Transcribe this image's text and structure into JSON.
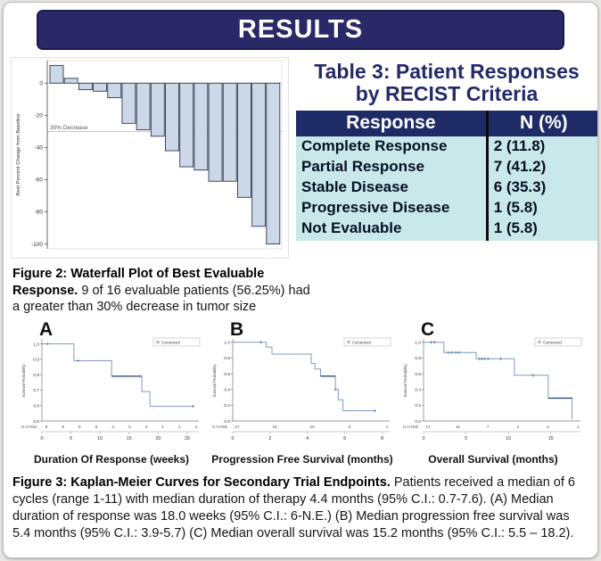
{
  "page": {
    "title": "RESULTS"
  },
  "colors": {
    "header_bg": "#2a2968",
    "table_header_bg": "#1f2b66",
    "table_row_bg": "#c9e8ea",
    "title_navy": "#232a68",
    "bar_fill": "#ccd7e8",
    "bar_stroke": "#2f3a55",
    "km_line": "#7d9cc4",
    "km_dark": "#2f5478",
    "km_censor": "#5b82ad"
  },
  "table3": {
    "title_line1": "Table 3: Patient Responses",
    "title_line2": "by RECIST Criteria",
    "columns": [
      "Response",
      "N (%)"
    ],
    "rows": [
      [
        "Complete Response",
        "2 (11.8)"
      ],
      [
        "Partial Response",
        "7 (41.2)"
      ],
      [
        "Stable Disease",
        "6 (35.3)"
      ],
      [
        "Progressive Disease",
        "1 (5.8)"
      ],
      [
        "Not Evaluable",
        "1 (5.8)"
      ]
    ]
  },
  "figure2": {
    "caption_bold": "Figure 2: Waterfall Plot of Best Evaluable Response.",
    "caption_text": " 9 of 16 evaluable patients (56.25%) had a greater than 30% decrease in tumor size"
  },
  "figure3": {
    "caption_bold": "Figure 3: Kaplan-Meier Curves for Secondary Trial Endpoints.",
    "caption_text": " Patients received a median of 6 cycles (range 1-11) with median duration of therapy 4.4 months (95% C.I.: 0.7-7.6). (A) Median duration of response was 18.0 weeks (95% C.I.: 6-N.E.)  (B) Median progression free survival was 5.4 months (95% C.I.: 3.9-5.7) (C) Median overall survival was 15.2 months (95% C.I.: 5.5 – 18.2)."
  },
  "chart_data": [
    {
      "type": "bar",
      "subtype": "waterfall",
      "title": "Waterfall Plot of Best Evaluable Response",
      "ylabel": "Best Percent Change from Baseline",
      "values": [
        11,
        3,
        -4,
        -5,
        -9,
        -25,
        -29,
        -33,
        -42,
        -52,
        -54,
        -61,
        -61,
        -71,
        -89,
        -100
      ],
      "yticks": [
        0,
        -20,
        -40,
        -60,
        -80,
        -100
      ],
      "ylim": [
        -103,
        14
      ],
      "ref_line": {
        "y": -30,
        "label": "30% Decrease"
      },
      "grid": false
    },
    {
      "type": "line",
      "subtype": "kaplan-meier",
      "panel_label": "A",
      "xlabel": "Duration Of Response (weeks)",
      "ylabel": "Survival Probability",
      "legend": "Censored",
      "legend_position": "top-right",
      "xticks": [
        0,
        5,
        10,
        15,
        20,
        25
      ],
      "xmax": 27,
      "yticks": [
        1.0,
        0.9,
        0.8,
        0.7,
        0.6,
        0.5
      ],
      "ylim": [
        0.5,
        1.02
      ],
      "steps": [
        [
          0,
          1.0
        ],
        [
          5.5,
          1.0
        ],
        [
          5.5,
          0.89
        ],
        [
          12,
          0.89
        ],
        [
          12,
          0.79
        ],
        [
          17.2,
          0.79
        ],
        [
          17.2,
          0.69
        ],
        [
          18.6,
          0.69
        ],
        [
          18.6,
          0.595
        ],
        [
          26,
          0.595
        ]
      ],
      "censors": [
        [
          1,
          1.0
        ],
        [
          6.2,
          0.89
        ],
        [
          16.8,
          0.79
        ],
        [
          26,
          0.595
        ]
      ],
      "dark_segments": [
        [
          12,
          17.2,
          0.79
        ]
      ],
      "at_risk_label": "N At Risk",
      "at_risk": [
        9,
        8,
        8,
        5,
        4,
        3,
        2,
        1,
        1,
        1
      ]
    },
    {
      "type": "line",
      "subtype": "kaplan-meier",
      "panel_label": "B",
      "xlabel": "Progression Free Survival (months)",
      "ylabel": "Survival Probability",
      "legend": "Censored",
      "legend_position": "top-right",
      "xticks": [
        0,
        2,
        4,
        6,
        8
      ],
      "xmax": 8.4,
      "yticks": [
        1.0,
        0.8,
        0.6,
        0.4,
        0.2,
        0.0
      ],
      "ylim": [
        0.0,
        1.02
      ],
      "steps": [
        [
          0,
          1.0
        ],
        [
          1.8,
          1.0
        ],
        [
          1.8,
          0.94
        ],
        [
          2.1,
          0.94
        ],
        [
          2.1,
          0.85
        ],
        [
          4.2,
          0.85
        ],
        [
          4.2,
          0.73
        ],
        [
          4.4,
          0.73
        ],
        [
          4.4,
          0.66
        ],
        [
          4.7,
          0.66
        ],
        [
          4.7,
          0.57
        ],
        [
          5.5,
          0.57
        ],
        [
          5.5,
          0.4
        ],
        [
          5.65,
          0.4
        ],
        [
          5.65,
          0.27
        ],
        [
          5.9,
          0.27
        ],
        [
          5.9,
          0.13
        ],
        [
          7.6,
          0.13
        ]
      ],
      "censors": [
        [
          1.5,
          1.0
        ],
        [
          5.4,
          0.57
        ],
        [
          5.5,
          0.4
        ],
        [
          7.6,
          0.13
        ]
      ],
      "dark_segments": [
        [
          4.7,
          5.5,
          0.57
        ]
      ],
      "at_risk_label": "N At Risk",
      "at_risk": [
        17,
        15,
        10,
        3,
        1
      ]
    },
    {
      "type": "line",
      "subtype": "kaplan-meier",
      "panel_label": "C",
      "xlabel": "Overall Survival (months)",
      "ylabel": "Survival Probability",
      "legend": "Censored",
      "legend_position": "top-right",
      "xticks": [
        0,
        5,
        10,
        15
      ],
      "xmax": 18.5,
      "yticks": [
        1.0,
        0.8,
        0.6,
        0.4,
        0.2,
        0.0
      ],
      "ylim": [
        0.0,
        1.02
      ],
      "steps": [
        [
          0,
          1.0
        ],
        [
          2.4,
          1.0
        ],
        [
          2.4,
          0.87
        ],
        [
          6.2,
          0.87
        ],
        [
          6.2,
          0.79
        ],
        [
          10.7,
          0.79
        ],
        [
          10.7,
          0.58
        ],
        [
          14.7,
          0.58
        ],
        [
          14.7,
          0.29
        ],
        [
          17.5,
          0.29
        ],
        [
          17.5,
          0.02
        ]
      ],
      "censors": [
        [
          0.9,
          1.0
        ],
        [
          1.3,
          1.0
        ],
        [
          2.9,
          0.87
        ],
        [
          3.3,
          0.87
        ],
        [
          3.8,
          0.87
        ],
        [
          4.2,
          0.87
        ],
        [
          6.6,
          0.79
        ],
        [
          6.9,
          0.79
        ],
        [
          7.2,
          0.79
        ],
        [
          7.6,
          0.79
        ],
        [
          9.1,
          0.79
        ],
        [
          12.9,
          0.58
        ]
      ],
      "dark_segments": [
        [
          14.7,
          17.5,
          0.29
        ]
      ],
      "at_risk_label": "N At Risk",
      "at_risk": [
        17,
        11,
        7,
        4,
        2,
        1
      ]
    }
  ]
}
